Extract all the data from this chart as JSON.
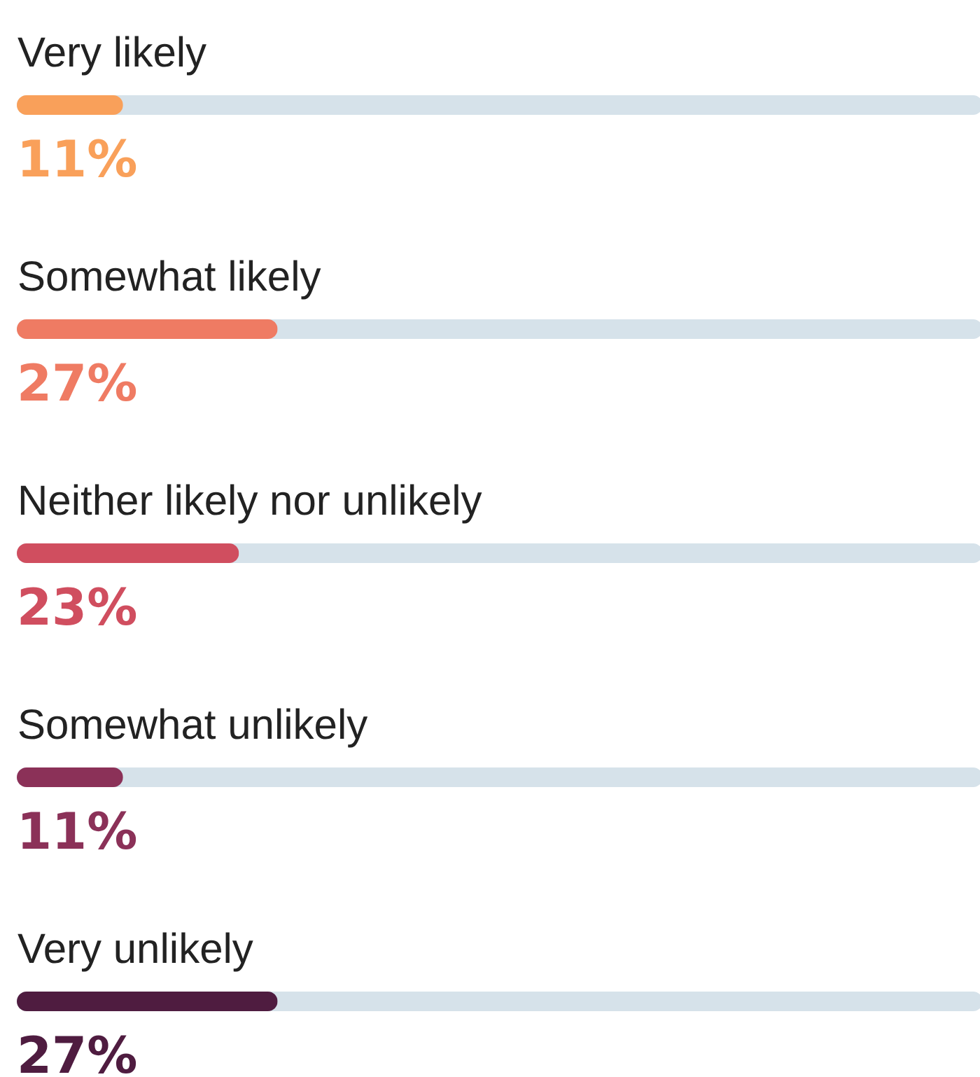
{
  "chart_data": {
    "type": "bar",
    "orientation": "horizontal",
    "categories": [
      "Very likely",
      "Somewhat likely",
      "Neither likely nor unlikely",
      "Somewhat unlikely",
      "Very unlikely"
    ],
    "values": [
      11,
      27,
      23,
      11,
      27
    ],
    "colors": [
      "#f9a05a",
      "#ef7b63",
      "#d04e5f",
      "#8b3158",
      "#4f1c40"
    ],
    "value_labels": [
      "11%",
      "27%",
      "23%",
      "11%",
      "27%"
    ],
    "xlim": [
      0,
      100
    ],
    "tick_labels": "y"
  }
}
